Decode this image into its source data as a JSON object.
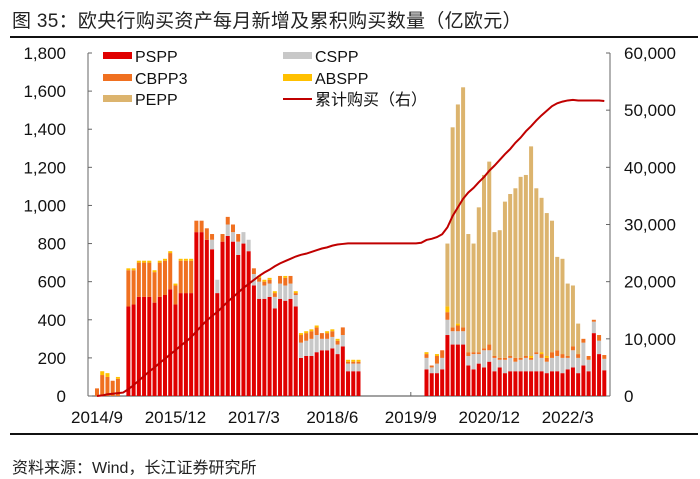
{
  "figure": {
    "title": "图 35：欧央行购买资产每月新增及累积购买数量（亿欧元）",
    "source": "资料来源：Wind，长江证券研究所"
  },
  "chart_data": {
    "type": "bar",
    "stacked": true,
    "title": "欧央行购买资产每月新增及累积购买数量（亿欧元）",
    "xlabel": "",
    "ylabel": "",
    "y2label": "",
    "ylim": [
      0,
      1800
    ],
    "y2lim": [
      0,
      60000
    ],
    "yticks": [
      "0",
      "200",
      "400",
      "600",
      "800",
      "1,000",
      "1,200",
      "1,400",
      "1,600",
      "1,800"
    ],
    "y2ticks": [
      "0",
      "10,000",
      "20,000",
      "30,000",
      "40,000",
      "50,000",
      "60,000"
    ],
    "xticks": [
      "2014/9",
      "2015/12",
      "2017/3",
      "2018/6",
      "2019/9",
      "2020/12",
      "2022/3"
    ],
    "legend_position": "top",
    "start_month": "2014/9",
    "colors": {
      "PSPP": "#e00000",
      "CBPP3": "#f07020",
      "CSPP": "#c8c8c8",
      "ABSPP": "#ffc000",
      "PEPP": "#dcb46e",
      "cumulative": "#c00000"
    },
    "series": [
      {
        "name": "PSPP",
        "type": "bar",
        "values": [
          0,
          0,
          0,
          0,
          0,
          0,
          470,
          480,
          520,
          520,
          520,
          490,
          520,
          530,
          560,
          480,
          540,
          540,
          540,
          860,
          860,
          820,
          770,
          540,
          810,
          840,
          810,
          740,
          800,
          760,
          580,
          510,
          510,
          520,
          460,
          510,
          500,
          510,
          470,
          200,
          210,
          210,
          230,
          240,
          240,
          250,
          220,
          260,
          130,
          130,
          130,
          0,
          0,
          0,
          0,
          0,
          0,
          0,
          0,
          0,
          0,
          0,
          0,
          140,
          120,
          120,
          140,
          320,
          270,
          270,
          270,
          160,
          140,
          170,
          150,
          180,
          130,
          150,
          120,
          130,
          130,
          130,
          130,
          130,
          130,
          130,
          120,
          130,
          130,
          120,
          140,
          150,
          120,
          160,
          130,
          330,
          220,
          135
        ]
      },
      {
        "name": "CSPP",
        "type": "bar",
        "values": [
          0,
          0,
          0,
          0,
          0,
          0,
          0,
          0,
          0,
          0,
          0,
          0,
          0,
          0,
          0,
          0,
          0,
          0,
          0,
          0,
          0,
          0,
          50,
          70,
          0,
          60,
          50,
          70,
          60,
          60,
          60,
          90,
          70,
          70,
          60,
          80,
          80,
          80,
          60,
          80,
          80,
          90,
          90,
          60,
          60,
          60,
          50,
          60,
          40,
          40,
          40,
          0,
          0,
          0,
          0,
          0,
          0,
          0,
          0,
          0,
          0,
          0,
          0,
          60,
          30,
          50,
          60,
          80,
          70,
          70,
          70,
          50,
          80,
          50,
          90,
          60,
          70,
          40,
          70,
          70,
          50,
          60,
          70,
          60,
          90,
          70,
          60,
          70,
          80,
          80,
          60,
          90,
          80,
          120,
          60,
          60,
          70,
          60
        ]
      },
      {
        "name": "CBPP3",
        "type": "bar",
        "values": [
          40,
          110,
          100,
          80,
          90,
          0,
          190,
          180,
          180,
          180,
          180,
          160,
          180,
          180,
          190,
          100,
          170,
          170,
          170,
          60,
          60,
          60,
          30,
          0,
          40,
          40,
          40,
          40,
          0,
          0,
          30,
          20,
          20,
          20,
          20,
          40,
          40,
          40,
          10,
          40,
          40,
          40,
          40,
          30,
          30,
          30,
          20,
          40,
          10,
          10,
          10,
          0,
          0,
          0,
          0,
          0,
          0,
          0,
          0,
          0,
          0,
          0,
          0,
          20,
          10,
          40,
          40,
          40,
          20,
          30,
          20,
          20,
          10,
          10,
          10,
          30,
          10,
          10,
          10,
          10,
          20,
          10,
          10,
          10,
          10,
          20,
          20,
          30,
          30,
          20,
          10,
          20,
          20,
          20,
          20,
          10,
          30,
          20
        ]
      },
      {
        "name": "ABSPP",
        "type": "bar",
        "values": [
          0,
          20,
          20,
          0,
          10,
          0,
          10,
          10,
          10,
          10,
          10,
          10,
          10,
          10,
          10,
          10,
          10,
          10,
          10,
          0,
          0,
          0,
          0,
          0,
          0,
          0,
          0,
          0,
          0,
          0,
          0,
          10,
          10,
          10,
          10,
          0,
          10,
          0,
          10,
          10,
          10,
          10,
          10,
          0,
          10,
          10,
          10,
          0,
          10,
          10,
          10,
          0,
          0,
          0,
          0,
          0,
          0,
          0,
          0,
          0,
          0,
          0,
          0,
          10,
          0,
          10,
          0,
          30,
          0,
          10,
          0,
          0,
          0,
          0,
          0,
          0,
          0,
          0,
          0,
          0,
          0,
          0,
          0,
          10,
          0,
          10,
          10,
          0,
          0,
          0,
          0,
          0,
          0,
          0,
          0,
          0,
          0,
          0
        ]
      },
      {
        "name": "PEPP",
        "type": "bar",
        "values": [
          0,
          0,
          0,
          0,
          0,
          0,
          0,
          0,
          0,
          0,
          0,
          0,
          0,
          0,
          0,
          0,
          0,
          0,
          0,
          0,
          0,
          0,
          0,
          0,
          0,
          0,
          0,
          0,
          0,
          0,
          0,
          0,
          0,
          0,
          0,
          0,
          0,
          0,
          0,
          0,
          0,
          0,
          0,
          0,
          0,
          0,
          0,
          0,
          0,
          0,
          0,
          0,
          0,
          0,
          0,
          0,
          0,
          0,
          0,
          0,
          0,
          0,
          0,
          0,
          0,
          0,
          0,
          330,
          1050,
          1150,
          1260,
          620,
          570,
          760,
          910,
          960,
          650,
          670,
          820,
          850,
          890,
          950,
          950,
          1100,
          860,
          810,
          750,
          690,
          490,
          500,
          380,
          320,
          160,
          0,
          0,
          0,
          0,
          0
        ]
      },
      {
        "name": "累计购买（右）",
        "type": "line",
        "axis": "right",
        "values": [
          0,
          100,
          300,
          400,
          500,
          600,
          1200,
          1900,
          2700,
          3500,
          4300,
          5000,
          5800,
          6500,
          7300,
          8000,
          8800,
          9500,
          10300,
          11300,
          12300,
          13200,
          14000,
          14700,
          15600,
          16500,
          17300,
          18100,
          18900,
          19600,
          20300,
          21000,
          21600,
          22100,
          22700,
          23200,
          23600,
          24000,
          24400,
          24700,
          24900,
          25200,
          25500,
          25800,
          26000,
          26300,
          26500,
          26600,
          26700,
          26700,
          26700,
          26700,
          26700,
          26700,
          26700,
          26700,
          26700,
          26700,
          26700,
          26700,
          26700,
          26700,
          26800,
          27300,
          27500,
          27800,
          28300,
          29500,
          31500,
          33000,
          34500,
          35600,
          36400,
          37400,
          38300,
          39400,
          40300,
          41300,
          42300,
          43200,
          44300,
          45200,
          46300,
          47200,
          48200,
          49100,
          49900,
          50700,
          51200,
          51500,
          51700,
          51800,
          51700,
          51700,
          51700,
          51700,
          51700,
          51600
        ]
      }
    ],
    "legend": [
      {
        "label": "PSPP",
        "kind": "bar"
      },
      {
        "label": "CSPP",
        "kind": "bar"
      },
      {
        "label": "CBPP3",
        "kind": "bar"
      },
      {
        "label": "ABSPP",
        "kind": "bar"
      },
      {
        "label": "PEPP",
        "kind": "bar"
      },
      {
        "label": "累计购买（右）",
        "kind": "line"
      }
    ]
  }
}
